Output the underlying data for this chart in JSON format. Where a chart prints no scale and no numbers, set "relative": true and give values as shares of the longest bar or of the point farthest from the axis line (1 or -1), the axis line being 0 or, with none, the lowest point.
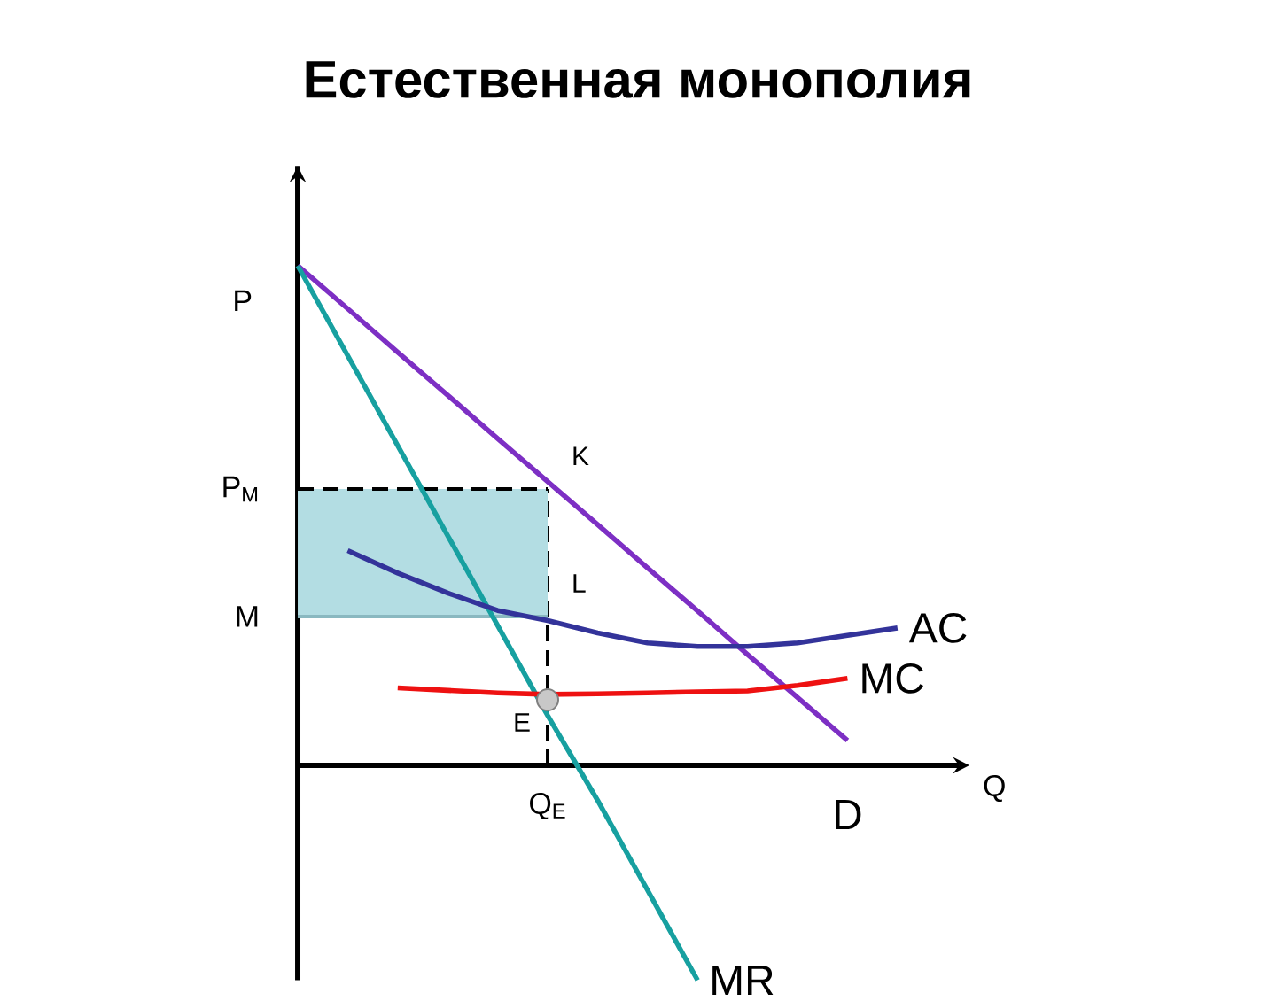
{
  "chart_data": {
    "type": "line",
    "title": "Естественная монополия",
    "xlabel": "Q",
    "ylabel": "P",
    "relative": true,
    "categories": [
      null,
      null,
      null,
      null,
      null,
      null,
      null,
      null,
      null,
      null,
      null,
      null,
      null
    ],
    "series": [
      {
        "name": "D",
        "color": "#7d2fc4",
        "values": [
          1.0,
          0.914,
          0.827,
          0.741,
          0.654,
          0.568,
          0.482,
          0.395,
          0.309,
          0.222,
          0.136,
          0.05,
          null
        ]
      },
      {
        "name": "MR",
        "color": "#17a0a0",
        "values": [
          1.0,
          0.82,
          0.64,
          0.46,
          0.28,
          0.1,
          -0.07,
          -0.25,
          -0.43,
          null,
          null,
          null,
          null
        ]
      },
      {
        "name": "AC",
        "color": "#33339a",
        "values": [
          null,
          0.43,
          0.385,
          0.345,
          0.31,
          0.29,
          0.265,
          0.245,
          0.238,
          0.238,
          0.245,
          0.26,
          0.275
        ]
      },
      {
        "name": "MC",
        "color": "#ee1111",
        "values": [
          null,
          null,
          0.155,
          0.15,
          0.145,
          0.142,
          0.143,
          0.145,
          0.147,
          0.149,
          0.16,
          0.174,
          null
        ]
      },
      {
        "name": "E",
        "marker": "circle",
        "color": "#c8c8c8",
        "values": [
          null,
          null,
          null,
          null,
          null,
          0.131,
          null,
          null,
          null,
          null,
          null,
          null,
          null
        ]
      }
    ],
    "ref_lines": [
      {
        "axis": "y",
        "value": 0.553,
        "label": "P$_{M}$",
        "line_style": "dashed",
        "color": "#000000"
      },
      {
        "axis": "y",
        "value": 0.298,
        "label": "M",
        "line_style": "solid",
        "color": "#8ab8c0"
      }
    ],
    "bands": [
      {
        "axis": "y",
        "from": 0.298,
        "to": 0.553,
        "color": "#b3dde3"
      }
    ],
    "annotations": [
      "K",
      "L",
      "Q$_{E}$"
    ]
  }
}
